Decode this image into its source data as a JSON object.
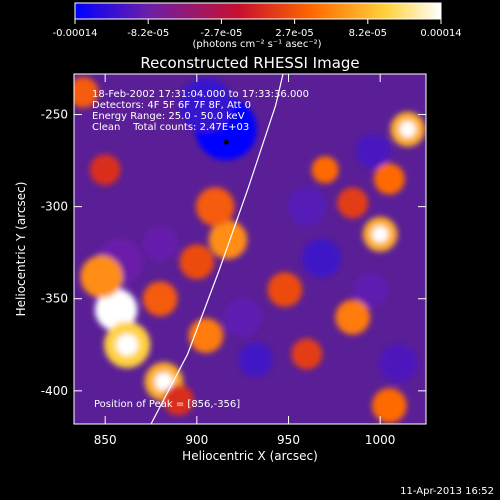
{
  "chart_data": {
    "type": "heatmap",
    "title": "Reconstructed RHESSI Image",
    "xlabel": "Heliocentric X (arcsec)",
    "ylabel": "Heliocentric Y (arcsec)",
    "xlim": [
      833,
      1025
    ],
    "ylim": [
      -418,
      -228
    ],
    "x_ticks": [
      850,
      900,
      950,
      1000
    ],
    "y_ticks": [
      -250,
      -300,
      -350,
      -400
    ],
    "colorbar": {
      "ticks": [
        "-0.00014",
        "-8.2e-05",
        "-2.7e-05",
        "2.7e-05",
        "8.2e-05",
        "0.00014"
      ],
      "unit": "(photons cm⁻² s⁻¹ asec⁻²)",
      "range": [
        -0.00014,
        0.00014
      ],
      "colormap": [
        "#0000ff",
        "#6b1fa8",
        "#c8102e",
        "#ff6a00",
        "#ffd23c",
        "#ffffff"
      ]
    },
    "annotations": [
      "18-Feb-2002 17:31:04.000 to 17:33:36.000",
      "Detectors: 4F 5F 6F 7F 8F, Att 0",
      "Energy Range: 25.0 - 50.0 keV",
      "Clean    Total counts: 2.47E+03"
    ],
    "peak_label": "Position of Peak = [856,-356]",
    "peak": [
      856,
      -356
    ],
    "marker": [
      916,
      -265
    ],
    "limb_curve": [
      [
        875,
        -418
      ],
      [
        895,
        -380
      ],
      [
        912,
        -335
      ],
      [
        928,
        -290
      ],
      [
        943,
        -245
      ],
      [
        947,
        -228
      ]
    ],
    "blobs": [
      {
        "x": 916,
        "y": -258,
        "v": -1.0,
        "r": 16
      },
      {
        "x": 905,
        "y": -245,
        "v": -0.6,
        "r": 14
      },
      {
        "x": 960,
        "y": -300,
        "v": -0.35,
        "r": 10
      },
      {
        "x": 968,
        "y": -328,
        "v": -0.55,
        "r": 10
      },
      {
        "x": 996,
        "y": -270,
        "v": -0.45,
        "r": 9
      },
      {
        "x": 932,
        "y": -383,
        "v": -0.5,
        "r": 9
      },
      {
        "x": 1010,
        "y": -385,
        "v": -0.4,
        "r": 10
      },
      {
        "x": 925,
        "y": -360,
        "v": -0.25,
        "r": 10
      },
      {
        "x": 858,
        "y": -330,
        "v": -0.15,
        "r": 12
      },
      {
        "x": 995,
        "y": -345,
        "v": -0.25,
        "r": 9
      },
      {
        "x": 880,
        "y": -320,
        "v": -0.2,
        "r": 9
      },
      {
        "x": 856,
        "y": -356,
        "v": 1.0,
        "r": 11
      },
      {
        "x": 862,
        "y": -375,
        "v": 0.8,
        "r": 12
      },
      {
        "x": 848,
        "y": -338,
        "v": 0.6,
        "r": 11
      },
      {
        "x": 882,
        "y": -395,
        "v": 0.7,
        "r": 10
      },
      {
        "x": 880,
        "y": -350,
        "v": 0.45,
        "r": 9
      },
      {
        "x": 905,
        "y": -370,
        "v": 0.55,
        "r": 9
      },
      {
        "x": 917,
        "y": -318,
        "v": 0.6,
        "r": 10
      },
      {
        "x": 910,
        "y": -300,
        "v": 0.45,
        "r": 10
      },
      {
        "x": 900,
        "y": -330,
        "v": 0.4,
        "r": 9
      },
      {
        "x": 1015,
        "y": -258,
        "v": 0.7,
        "r": 9
      },
      {
        "x": 1005,
        "y": -285,
        "v": 0.5,
        "r": 8
      },
      {
        "x": 1000,
        "y": -315,
        "v": 0.7,
        "r": 9
      },
      {
        "x": 985,
        "y": -298,
        "v": 0.35,
        "r": 8
      },
      {
        "x": 970,
        "y": -280,
        "v": 0.5,
        "r": 7
      },
      {
        "x": 948,
        "y": -345,
        "v": 0.4,
        "r": 9
      },
      {
        "x": 985,
        "y": -360,
        "v": 0.55,
        "r": 9
      },
      {
        "x": 1005,
        "y": -408,
        "v": 0.5,
        "r": 9
      },
      {
        "x": 838,
        "y": -238,
        "v": 0.45,
        "r": 8
      },
      {
        "x": 850,
        "y": -280,
        "v": 0.3,
        "r": 8
      },
      {
        "x": 890,
        "y": -405,
        "v": 0.3,
        "r": 8
      },
      {
        "x": 960,
        "y": -380,
        "v": 0.35,
        "r": 8
      }
    ]
  },
  "footer": {
    "timestamp": "11-Apr-2013 16:52"
  }
}
